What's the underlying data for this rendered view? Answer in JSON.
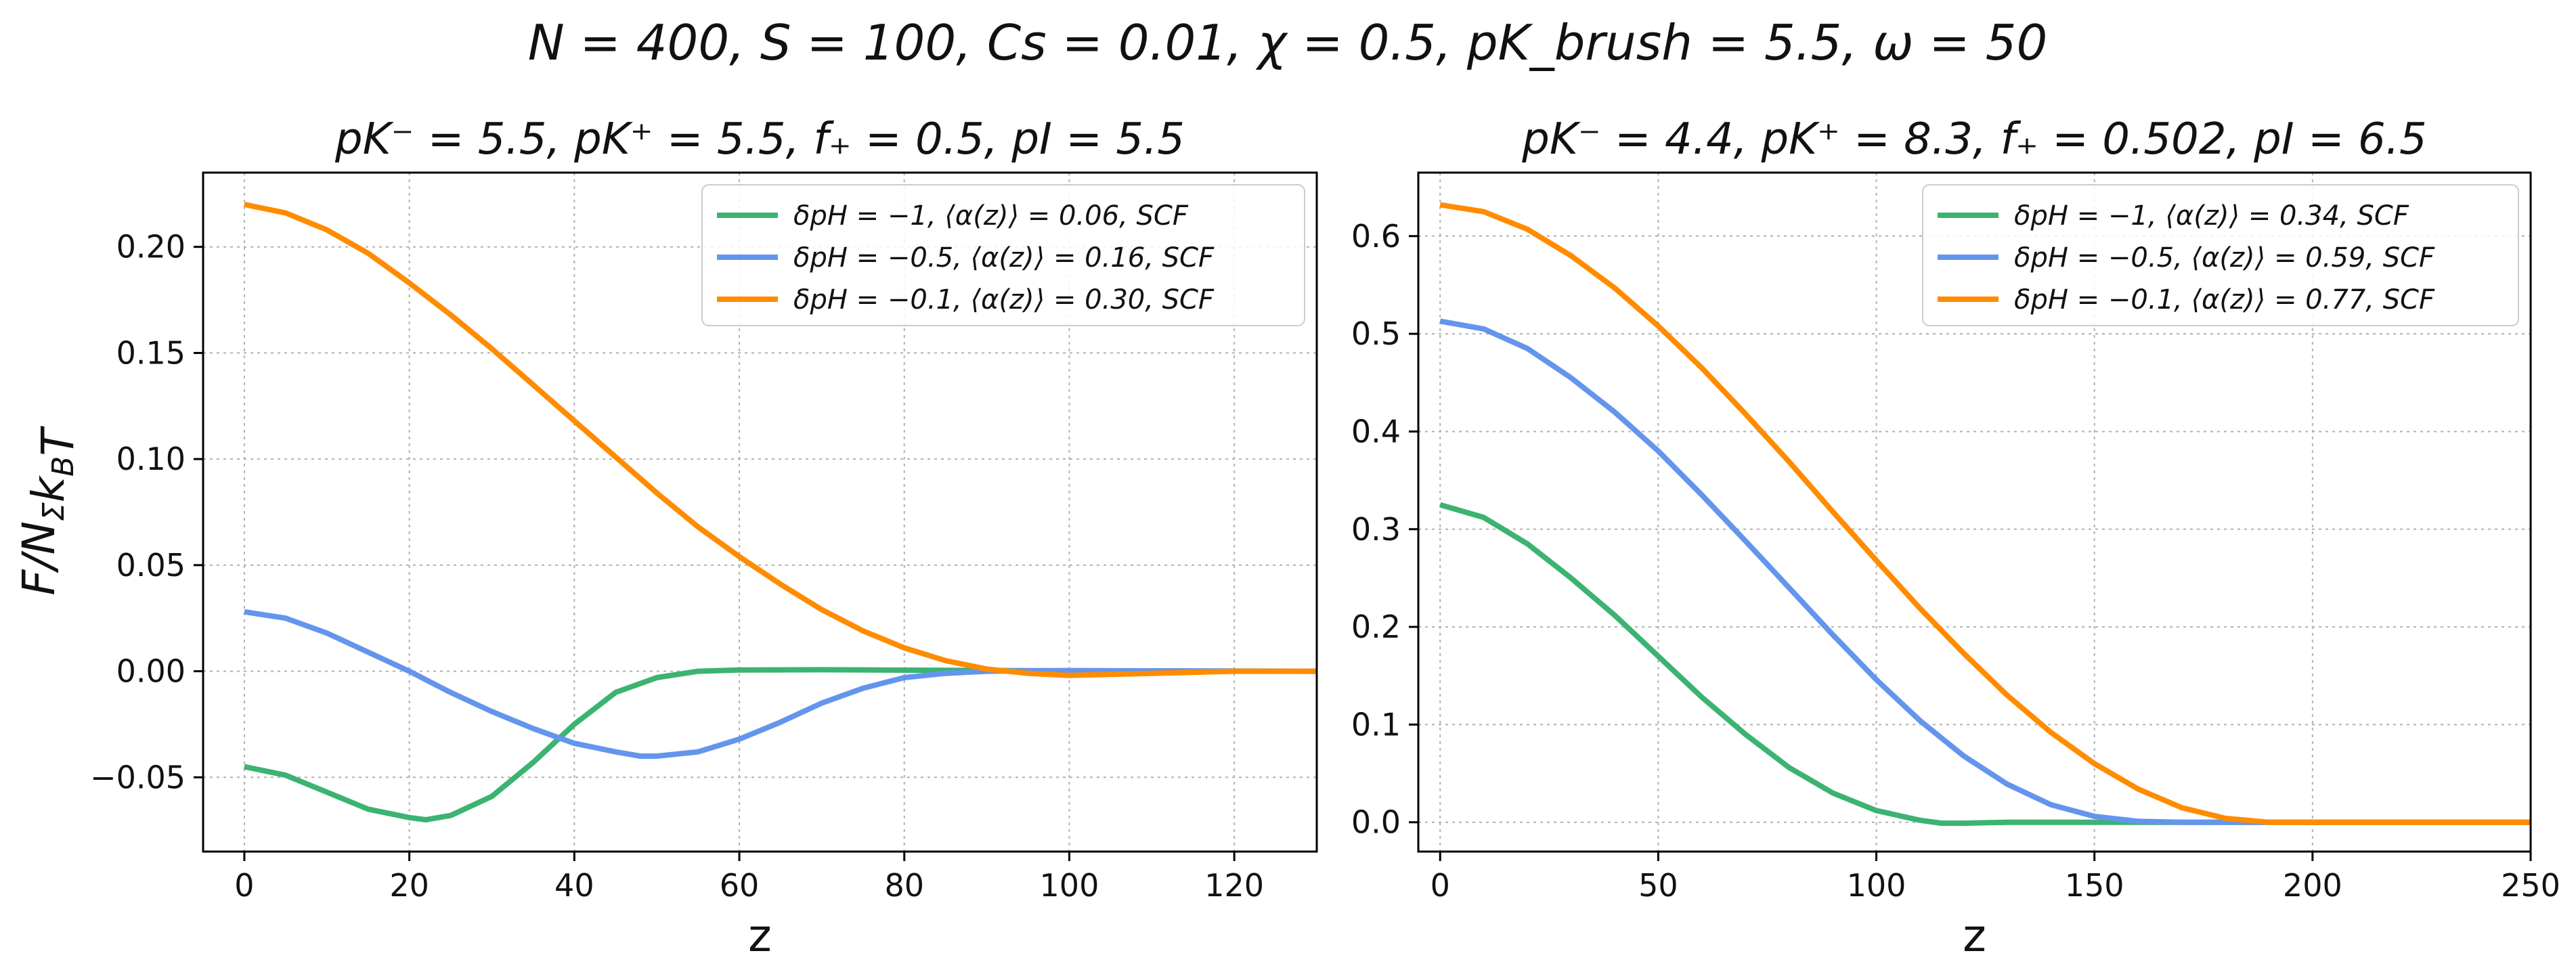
{
  "figure": {
    "suptitle": "N = 400, S = 100, Cs = 0.01, χ = 0.5, pK_brush = 5.5, ω = 50"
  },
  "colors": {
    "green": "#3cb371",
    "blue": "#6495ed",
    "orange": "#ff8c00",
    "grid": "#b0b0b0"
  },
  "chart_data": [
    {
      "type": "line",
      "title": "pK⁻ = 5.5, pK⁺ = 5.5, f₊ = 0.5, pI = 5.5",
      "xlabel": "z",
      "ylabel": "F/N_Σ k_B T",
      "xlim": [
        -5,
        130
      ],
      "ylim": [
        -0.085,
        0.235
      ],
      "xticks": [
        0,
        20,
        40,
        60,
        80,
        100,
        120
      ],
      "xtick_labels": [
        "0",
        "20",
        "40",
        "60",
        "80",
        "100",
        "120"
      ],
      "yticks": [
        -0.05,
        0.0,
        0.05,
        0.1,
        0.15,
        0.2
      ],
      "ytick_labels": [
        "−0.05",
        "0.00",
        "0.05",
        "0.10",
        "0.15",
        "0.20"
      ],
      "grid": true,
      "legend_position": "top-right",
      "series": [
        {
          "name": "δpH = −1, ⟨α(z)⟩ = 0.06, SCF",
          "color": "#3cb371",
          "x": [
            0,
            5,
            10,
            15,
            20,
            22,
            25,
            30,
            35,
            40,
            45,
            50,
            55,
            60,
            70,
            80,
            100,
            130
          ],
          "y": [
            -0.045,
            -0.049,
            -0.057,
            -0.065,
            -0.069,
            -0.07,
            -0.068,
            -0.059,
            -0.043,
            -0.025,
            -0.01,
            -0.003,
            0.0,
            0.0006,
            0.0007,
            0.0005,
            0.0002,
            0.0
          ]
        },
        {
          "name": "δpH = −0.5, ⟨α(z)⟩ = 0.16, SCF",
          "color": "#6495ed",
          "x": [
            0,
            5,
            10,
            15,
            20,
            25,
            30,
            35,
            40,
            45,
            48,
            50,
            55,
            60,
            65,
            70,
            75,
            80,
            85,
            90,
            100,
            110,
            130
          ],
          "y": [
            0.028,
            0.025,
            0.018,
            0.009,
            0.0,
            -0.01,
            -0.019,
            -0.027,
            -0.034,
            -0.038,
            -0.04,
            -0.04,
            -0.038,
            -0.032,
            -0.024,
            -0.015,
            -0.008,
            -0.003,
            -0.001,
            0.0,
            0.0003,
            0.0002,
            0.0
          ]
        },
        {
          "name": "δpH = −0.1, ⟨α(z)⟩ = 0.30, SCF",
          "color": "#ff8c00",
          "x": [
            0,
            5,
            10,
            15,
            20,
            25,
            30,
            35,
            40,
            45,
            50,
            55,
            60,
            65,
            70,
            75,
            80,
            85,
            90,
            95,
            100,
            105,
            110,
            120,
            130
          ],
          "y": [
            0.22,
            0.216,
            0.208,
            0.197,
            0.183,
            0.168,
            0.152,
            0.135,
            0.118,
            0.101,
            0.084,
            0.068,
            0.054,
            0.041,
            0.029,
            0.019,
            0.011,
            0.005,
            0.001,
            -0.001,
            -0.002,
            -0.0015,
            -0.001,
            0.0,
            0.0
          ]
        }
      ]
    },
    {
      "type": "line",
      "title": "pK⁻ = 4.4, pK⁺ = 8.3, f₊ = 0.502, pI = 6.5",
      "xlabel": "z",
      "ylabel": "",
      "xlim": [
        -5,
        250
      ],
      "ylim": [
        -0.03,
        0.665
      ],
      "xticks": [
        0,
        50,
        100,
        150,
        200,
        250
      ],
      "xtick_labels": [
        "0",
        "50",
        "100",
        "150",
        "200",
        "250"
      ],
      "yticks": [
        0.0,
        0.1,
        0.2,
        0.3,
        0.4,
        0.5,
        0.6
      ],
      "ytick_labels": [
        "0.0",
        "0.1",
        "0.2",
        "0.3",
        "0.4",
        "0.5",
        "0.6"
      ],
      "grid": true,
      "legend_position": "top-right",
      "series": [
        {
          "name": "δpH = −1, ⟨α(z)⟩ = 0.34, SCF",
          "color": "#3cb371",
          "x": [
            0,
            10,
            20,
            30,
            40,
            50,
            60,
            70,
            80,
            90,
            100,
            110,
            115,
            120,
            130,
            150,
            200,
            250
          ],
          "y": [
            0.325,
            0.312,
            0.285,
            0.25,
            0.212,
            0.17,
            0.128,
            0.09,
            0.056,
            0.03,
            0.012,
            0.002,
            -0.001,
            -0.001,
            0.0,
            0.0,
            0.0,
            0.0
          ]
        },
        {
          "name": "δpH = −0.5, ⟨α(z)⟩ = 0.59, SCF",
          "color": "#6495ed",
          "x": [
            0,
            10,
            20,
            30,
            40,
            50,
            60,
            70,
            80,
            90,
            100,
            110,
            120,
            130,
            140,
            150,
            160,
            170,
            200,
            250
          ],
          "y": [
            0.513,
            0.505,
            0.485,
            0.455,
            0.42,
            0.38,
            0.335,
            0.288,
            0.24,
            0.192,
            0.146,
            0.104,
            0.068,
            0.039,
            0.018,
            0.006,
            0.001,
            0.0,
            0.0,
            0.0
          ]
        },
        {
          "name": "δpH = −0.1, ⟨α(z)⟩ = 0.77, SCF",
          "color": "#ff8c00",
          "x": [
            0,
            10,
            20,
            30,
            40,
            50,
            60,
            70,
            80,
            90,
            100,
            110,
            120,
            130,
            140,
            150,
            160,
            170,
            180,
            190,
            200,
            250
          ],
          "y": [
            0.632,
            0.625,
            0.607,
            0.58,
            0.547,
            0.508,
            0.465,
            0.418,
            0.369,
            0.318,
            0.268,
            0.219,
            0.173,
            0.13,
            0.092,
            0.06,
            0.034,
            0.015,
            0.004,
            0.0,
            0.0,
            0.0
          ]
        }
      ]
    }
  ]
}
